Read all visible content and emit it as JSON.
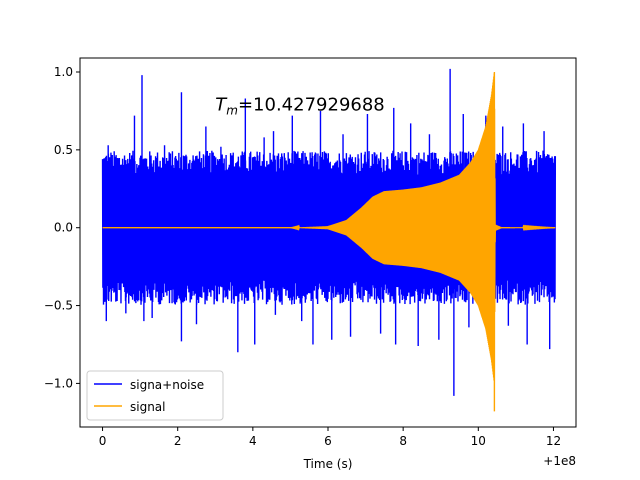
{
  "chart_data": {
    "type": "line",
    "xlabel": "Time (s)",
    "ylabel": "",
    "x_offset_label": "+1e8",
    "xlim": [
      -0.6,
      12.6
    ],
    "ylim": [
      -1.28,
      1.09
    ],
    "x_ticks": [
      0,
      2,
      4,
      6,
      8,
      10,
      12
    ],
    "x_tick_labels": [
      "0",
      "2",
      "4",
      "6",
      "8",
      "10",
      "12"
    ],
    "y_ticks": [
      -1.0,
      -0.5,
      0.0,
      0.5,
      1.0
    ],
    "y_tick_labels": [
      "−1.0",
      "−0.5",
      "0.0",
      "0.5",
      "1.0"
    ],
    "grid": false,
    "legend_position": "lower-left",
    "annotation": {
      "text_main": "T",
      "text_sub": "m",
      "text_value": "=10.427929688",
      "x": 3.0,
      "y": 0.79
    },
    "series": [
      {
        "name": "signa+noise",
        "color": "#0000ff",
        "x_range": [
          0,
          12.05
        ],
        "envelope_typical_upper": 0.45,
        "envelope_typical_lower": -0.45,
        "peaks": [
          {
            "x": 0.15,
            "y": 0.53
          },
          {
            "x": 0.1,
            "y": -0.6
          },
          {
            "x": 0.62,
            "y": -0.55
          },
          {
            "x": 0.85,
            "y": 0.72
          },
          {
            "x": 1.05,
            "y": 0.98
          },
          {
            "x": 1.1,
            "y": -0.6
          },
          {
            "x": 1.32,
            "y": -0.58
          },
          {
            "x": 1.65,
            "y": 0.53
          },
          {
            "x": 2.1,
            "y": 0.87
          },
          {
            "x": 2.1,
            "y": -0.73
          },
          {
            "x": 2.5,
            "y": -0.62
          },
          {
            "x": 2.75,
            "y": 0.65
          },
          {
            "x": 3.15,
            "y": 0.52
          },
          {
            "x": 3.8,
            "y": 0.83
          },
          {
            "x": 3.6,
            "y": -0.8
          },
          {
            "x": 4.05,
            "y": -0.75
          },
          {
            "x": 4.3,
            "y": 0.58
          },
          {
            "x": 4.55,
            "y": 0.62
          },
          {
            "x": 4.6,
            "y": -0.56
          },
          {
            "x": 5.05,
            "y": 0.72
          },
          {
            "x": 5.3,
            "y": -0.6
          },
          {
            "x": 5.6,
            "y": -0.75
          },
          {
            "x": 5.8,
            "y": 0.75
          },
          {
            "x": 6.1,
            "y": -0.72
          },
          {
            "x": 6.4,
            "y": 0.6
          },
          {
            "x": 6.6,
            "y": -0.7
          },
          {
            "x": 7.05,
            "y": 0.73
          },
          {
            "x": 7.4,
            "y": -0.68
          },
          {
            "x": 7.75,
            "y": 0.77
          },
          {
            "x": 7.8,
            "y": -0.75
          },
          {
            "x": 8.2,
            "y": 0.67
          },
          {
            "x": 8.4,
            "y": -0.76
          },
          {
            "x": 8.7,
            "y": 0.6
          },
          {
            "x": 8.95,
            "y": -0.72
          },
          {
            "x": 9.25,
            "y": 1.02
          },
          {
            "x": 9.35,
            "y": -1.08
          },
          {
            "x": 9.6,
            "y": 0.73
          },
          {
            "x": 9.75,
            "y": -0.64
          },
          {
            "x": 10.2,
            "y": 0.72
          },
          {
            "x": 10.35,
            "y": -0.82
          },
          {
            "x": 10.65,
            "y": 0.65
          },
          {
            "x": 10.8,
            "y": -0.63
          },
          {
            "x": 11.2,
            "y": 0.67
          },
          {
            "x": 11.3,
            "y": -0.75
          },
          {
            "x": 11.75,
            "y": 0.62
          },
          {
            "x": 11.9,
            "y": -0.78
          }
        ]
      },
      {
        "name": "signal",
        "color": "#ffa500",
        "x_range": [
          0,
          12.05
        ],
        "envelope": [
          {
            "x": 0,
            "y": 0.0
          },
          {
            "x": 5.0,
            "y": 0.0
          },
          {
            "x": 6.0,
            "y": 0.01
          },
          {
            "x": 6.5,
            "y": 0.05
          },
          {
            "x": 6.9,
            "y": 0.13
          },
          {
            "x": 7.2,
            "y": 0.2
          },
          {
            "x": 7.5,
            "y": 0.235
          },
          {
            "x": 8.0,
            "y": 0.245
          },
          {
            "x": 8.5,
            "y": 0.26
          },
          {
            "x": 9.0,
            "y": 0.29
          },
          {
            "x": 9.5,
            "y": 0.34
          },
          {
            "x": 9.8,
            "y": 0.42
          },
          {
            "x": 10.0,
            "y": 0.5
          },
          {
            "x": 10.2,
            "y": 0.65
          },
          {
            "x": 10.35,
            "y": 0.85
          },
          {
            "x": 10.428,
            "y": 1.0
          },
          {
            "x": 10.45,
            "y": 0.02
          },
          {
            "x": 10.6,
            "y": 0.004
          },
          {
            "x": 12.05,
            "y": 0.0
          }
        ],
        "merger_x": 10.428,
        "merger_min_y": -1.18
      }
    ]
  }
}
